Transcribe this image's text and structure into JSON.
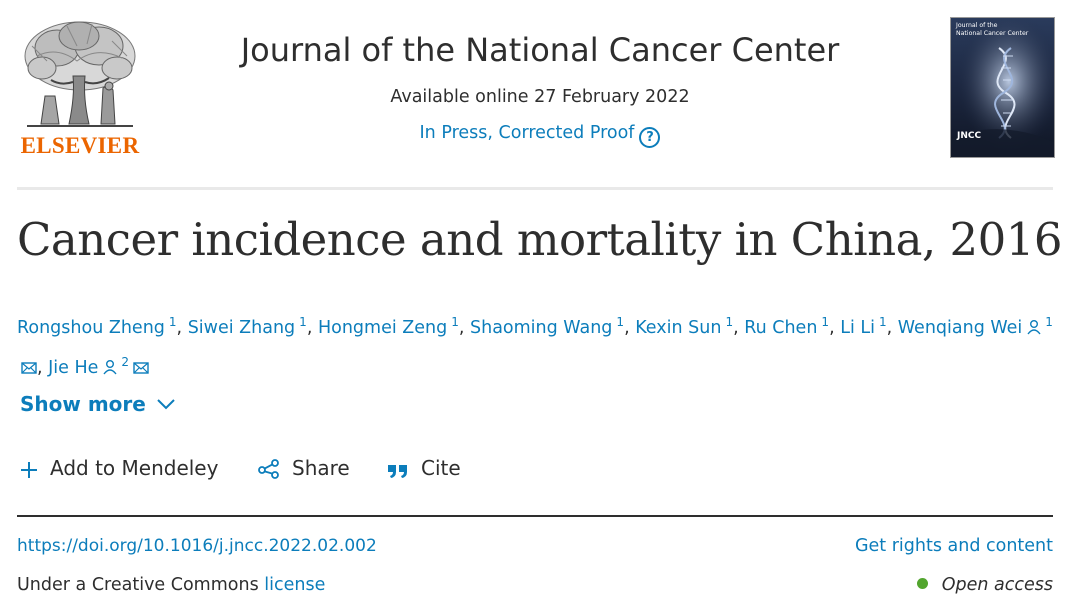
{
  "publisher": {
    "logo_text": "ELSEVIER",
    "brand_color": "#eb6500"
  },
  "journal": {
    "title": "Journal of the National Cancer Center",
    "available_online": "Available online 27 February 2022",
    "status": "In Press, Corrected Proof",
    "help_icon": "question-circle-icon",
    "cover_title": "Journal of the National Cancer Center",
    "cover_abbrev": "JNCC"
  },
  "article": {
    "title": "Cancer incidence and mortality in China, 2016",
    "authors": [
      {
        "name": "Rongshou Zheng",
        "sup": "1"
      },
      {
        "name": "Siwei Zhang",
        "sup": "1"
      },
      {
        "name": "Hongmei Zeng",
        "sup": "1"
      },
      {
        "name": "Shaoming Wang",
        "sup": "1"
      },
      {
        "name": "Kexin Sun",
        "sup": "1"
      },
      {
        "name": "Ru Chen",
        "sup": "1"
      },
      {
        "name": "Li Li",
        "sup": "1"
      },
      {
        "name": "Wenqiang Wei",
        "sup": "1"
      },
      {
        "name": "Jie He",
        "sup": "2"
      }
    ],
    "show_more": "Show more",
    "actions": {
      "mendeley": "Add to Mendeley",
      "share": "Share",
      "cite": "Cite"
    },
    "doi": "https://doi.org/10.1016/j.jncc.2022.02.002",
    "rights": "Get rights and content",
    "license_prefix": "Under a Creative Commons",
    "license_link": "license",
    "open_access": "Open access"
  },
  "colors": {
    "link": "#0c7dbb",
    "text": "#2e2e2e",
    "open_access_dot": "#52a52e"
  }
}
